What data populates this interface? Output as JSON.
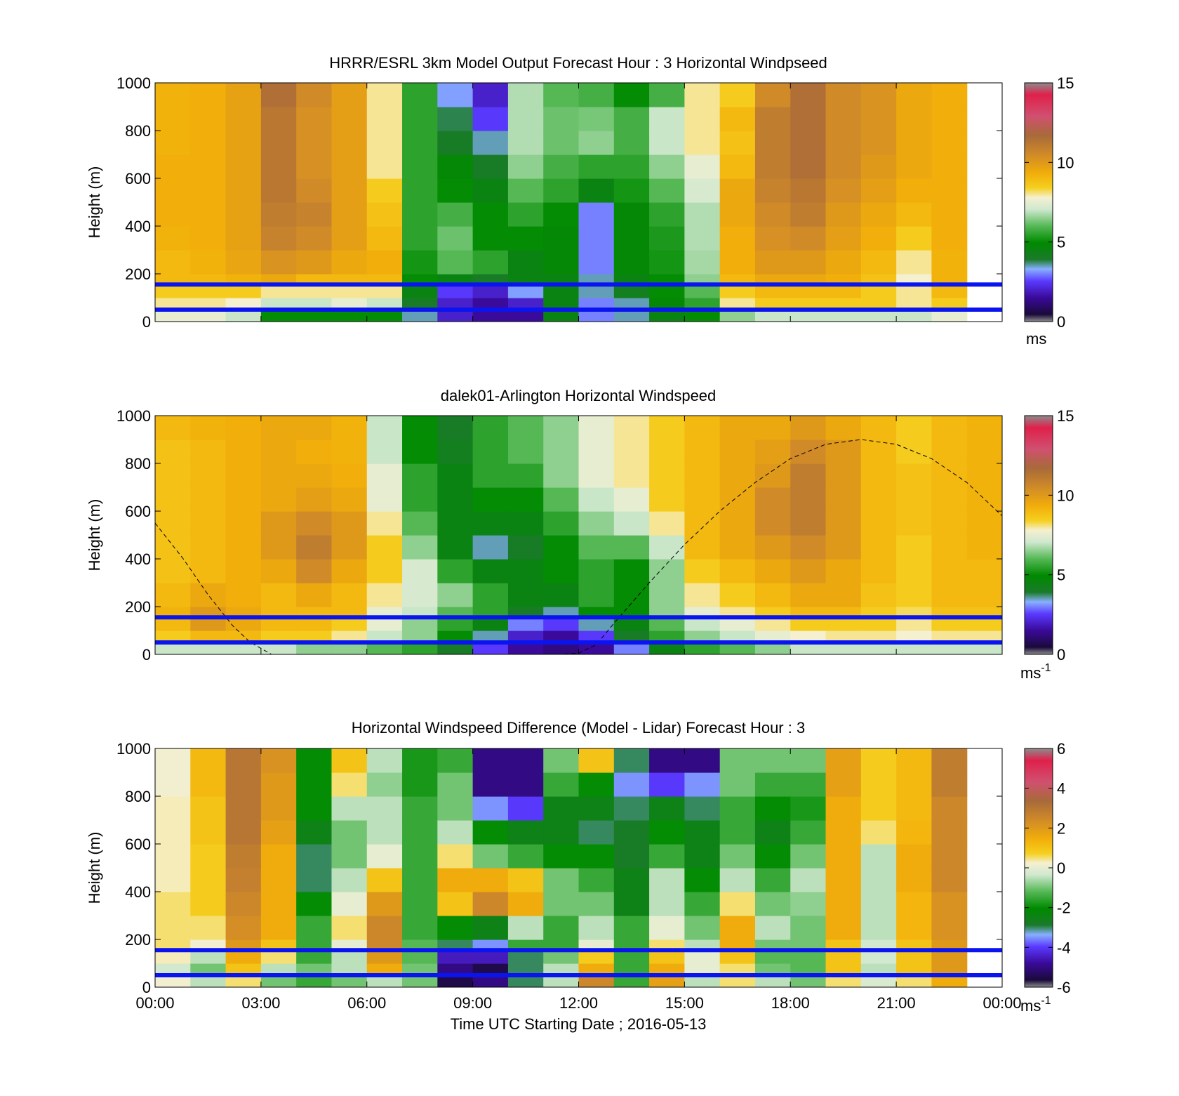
{
  "chart_data": [
    {
      "type": "heatmap",
      "title": "HRRR/ESRL 3km Model Output   Forecast Hour : 3 Horizontal Windpseed",
      "ylabel": "Height (m)",
      "ylim": [
        0,
        1000
      ],
      "yticks": [
        "0",
        "200",
        "400",
        "600",
        "800",
        "1000"
      ],
      "colorbar": {
        "min": 0,
        "max": 15,
        "ticks": [
          "0",
          "5",
          "10",
          "15"
        ],
        "unit": "ms"
      },
      "reference_heights_m": [
        50,
        155
      ],
      "hours": [
        "00",
        "01",
        "02",
        "03",
        "04",
        "05",
        "06",
        "07",
        "08",
        "09",
        "10",
        "11",
        "12",
        "13",
        "14",
        "15",
        "16",
        "17",
        "18",
        "19",
        "20",
        "21",
        "22"
      ],
      "profile_heights_m": [
        25,
        75,
        125,
        175,
        250,
        350,
        450,
        550,
        650,
        750,
        850,
        950
      ],
      "values": [
        [
          7.5,
          8.0,
          8.5,
          9.0,
          9.0,
          9.2,
          9.3,
          9.3,
          9.3,
          9.2,
          9.2,
          9.2
        ],
        [
          7.5,
          8.0,
          8.5,
          9.0,
          9.2,
          9.3,
          9.3,
          9.3,
          9.3,
          9.3,
          9.3,
          9.3
        ],
        [
          7.0,
          7.8,
          8.5,
          9.2,
          9.6,
          9.7,
          9.7,
          9.7,
          9.7,
          9.7,
          9.7,
          9.7
        ],
        [
          5.0,
          7.0,
          8.0,
          9.5,
          10.2,
          10.8,
          11.0,
          11.2,
          11.2,
          11.2,
          11.2,
          11.5
        ],
        [
          5.0,
          7.0,
          8.0,
          9.0,
          10.0,
          10.5,
          10.8,
          10.5,
          10.3,
          10.3,
          10.3,
          10.5
        ],
        [
          5.0,
          7.5,
          8.0,
          9.0,
          9.5,
          9.8,
          9.8,
          9.8,
          9.8,
          9.8,
          9.8,
          9.8
        ],
        [
          5.0,
          7.0,
          8.0,
          9.0,
          9.3,
          9.0,
          8.8,
          8.5,
          8.0,
          8.0,
          8.0,
          8.0
        ],
        [
          3.5,
          4.0,
          4.5,
          5.0,
          5.2,
          5.5,
          5.5,
          5.5,
          5.5,
          5.5,
          5.5,
          5.5
        ],
        [
          2.0,
          2.0,
          2.5,
          4.5,
          6.0,
          6.2,
          5.8,
          5.0,
          4.8,
          4.0,
          3.8,
          3.2
        ],
        [
          1.5,
          1.5,
          2.0,
          4.0,
          5.5,
          5.0,
          5.0,
          4.5,
          4.0,
          3.5,
          2.5,
          2.0
        ],
        [
          1.5,
          2.0,
          3.2,
          4.5,
          4.5,
          5.0,
          5.5,
          6.0,
          6.5,
          6.8,
          6.8,
          6.8
        ],
        [
          4.5,
          4.5,
          4.5,
          4.5,
          4.8,
          4.8,
          5.0,
          5.5,
          5.8,
          6.2,
          6.2,
          6.0
        ],
        [
          3.0,
          3.0,
          3.5,
          3.5,
          3.0,
          3.0,
          3.0,
          4.5,
          5.5,
          6.5,
          6.3,
          5.8
        ],
        [
          3.5,
          3.5,
          4.2,
          4.5,
          4.8,
          4.8,
          4.8,
          5.2,
          5.5,
          5.8,
          5.8,
          5.0
        ],
        [
          4.5,
          4.8,
          5.0,
          5.0,
          5.2,
          5.3,
          5.5,
          6.0,
          6.5,
          7.0,
          7.0,
          5.8
        ],
        [
          5.0,
          5.5,
          6.0,
          6.5,
          6.7,
          6.8,
          6.8,
          7.2,
          7.5,
          8.0,
          8.0,
          8.0
        ],
        [
          6.5,
          8.0,
          8.5,
          9.0,
          9.3,
          9.3,
          9.5,
          9.5,
          9.0,
          8.8,
          9.0,
          8.5
        ],
        [
          7.0,
          8.5,
          9.0,
          9.5,
          10.0,
          10.3,
          10.5,
          10.8,
          11.0,
          11.0,
          11.0,
          10.5
        ],
        [
          7.0,
          8.5,
          9.0,
          9.5,
          10.0,
          10.5,
          11.0,
          11.2,
          11.5,
          11.5,
          11.5,
          11.5
        ],
        [
          7.0,
          8.5,
          9.0,
          9.3,
          9.5,
          9.8,
          10.0,
          10.3,
          10.5,
          10.5,
          10.5,
          10.5
        ],
        [
          7.0,
          8.5,
          8.5,
          8.8,
          9.0,
          9.3,
          9.5,
          9.8,
          10.0,
          10.2,
          10.2,
          10.2
        ],
        [
          7.0,
          8.0,
          8.0,
          7.8,
          8.0,
          8.5,
          9.0,
          9.3,
          9.5,
          9.5,
          9.5,
          9.5
        ],
        [
          7.5,
          8.5,
          9.0,
          9.2,
          9.2,
          9.3,
          9.3,
          9.3,
          9.3,
          9.3,
          9.3,
          9.3
        ]
      ]
    },
    {
      "type": "heatmap",
      "title": "dalek01-Arlington  Horizontal Windspeed",
      "ylabel": "Height (m)",
      "ylim": [
        0,
        1000
      ],
      "yticks": [
        "0",
        "200",
        "400",
        "600",
        "800",
        "1000"
      ],
      "colorbar": {
        "min": 0,
        "max": 15,
        "ticks": [
          "0",
          "5",
          "10",
          "15"
        ],
        "unit": "ms",
        "unit_exp": "-1"
      },
      "reference_heights_m": [
        50,
        155
      ],
      "hours": [
        "00",
        "01",
        "02",
        "03",
        "04",
        "05",
        "06",
        "07",
        "08",
        "09",
        "10",
        "11",
        "12",
        "13",
        "14",
        "15",
        "16",
        "17",
        "18",
        "19",
        "20",
        "21",
        "22",
        "23"
      ],
      "profile_heights_m": [
        25,
        75,
        125,
        175,
        250,
        350,
        450,
        550,
        650,
        750,
        850,
        950
      ],
      "values": [
        [
          7.0,
          8.5,
          9.0,
          9.2,
          9.0,
          8.8,
          8.8,
          8.8,
          8.8,
          8.8,
          8.8,
          9.0
        ],
        [
          7.0,
          9.0,
          10.0,
          10.0,
          9.5,
          9.0,
          9.0,
          9.0,
          9.0,
          9.0,
          9.0,
          9.2
        ],
        [
          7.0,
          9.0,
          9.5,
          9.5,
          9.3,
          9.3,
          9.3,
          9.3,
          9.3,
          9.3,
          9.3,
          9.3
        ],
        [
          7.0,
          8.5,
          9.0,
          9.0,
          9.0,
          9.5,
          10.0,
          10.0,
          9.5,
          9.5,
          9.5,
          9.5
        ],
        [
          6.5,
          8.5,
          9.0,
          9.0,
          9.5,
          10.5,
          11.0,
          10.5,
          9.8,
          9.5,
          9.3,
          9.5
        ],
        [
          6.5,
          8.0,
          8.5,
          9.0,
          9.0,
          9.5,
          10.0,
          10.0,
          9.5,
          9.3,
          9.2,
          9.2
        ],
        [
          6.0,
          7.0,
          7.5,
          7.5,
          8.0,
          8.5,
          8.5,
          8.0,
          7.5,
          7.5,
          7.0,
          7.0
        ],
        [
          5.5,
          6.5,
          6.5,
          7.0,
          7.2,
          7.2,
          6.5,
          6.0,
          5.5,
          5.5,
          5.0,
          5.0
        ],
        [
          4.0,
          5.0,
          5.5,
          6.0,
          6.5,
          5.5,
          4.5,
          4.5,
          4.5,
          4.5,
          4.2,
          4.0
        ],
        [
          2.5,
          3.5,
          4.5,
          5.5,
          5.5,
          4.5,
          3.5,
          4.5,
          5.0,
          5.5,
          5.5,
          5.5
        ],
        [
          1.5,
          2.0,
          3.0,
          4.0,
          4.5,
          4.5,
          4.0,
          4.5,
          5.0,
          5.5,
          6.0,
          6.0
        ],
        [
          1.2,
          1.5,
          2.5,
          3.5,
          4.5,
          5.0,
          5.0,
          5.5,
          6.0,
          6.5,
          6.5,
          6.5
        ],
        [
          1.5,
          2.5,
          3.5,
          5.0,
          5.5,
          5.5,
          6.0,
          6.5,
          7.0,
          7.5,
          7.5,
          7.5
        ],
        [
          3.0,
          4.0,
          4.5,
          5.0,
          5.0,
          5.0,
          6.0,
          7.0,
          7.5,
          8.0,
          8.0,
          8.0
        ],
        [
          4.5,
          5.5,
          6.0,
          6.5,
          6.5,
          6.5,
          7.0,
          8.0,
          8.5,
          8.5,
          8.5,
          8.5
        ],
        [
          5.5,
          6.5,
          7.0,
          7.5,
          8.0,
          8.5,
          9.0,
          9.0,
          9.0,
          9.0,
          9.0,
          9.0
        ],
        [
          6.0,
          7.0,
          7.5,
          8.0,
          8.5,
          9.0,
          9.5,
          9.5,
          9.5,
          9.5,
          9.5,
          9.5
        ],
        [
          6.5,
          7.5,
          8.0,
          8.5,
          9.0,
          9.5,
          10.0,
          10.5,
          10.5,
          10.0,
          9.8,
          9.5
        ],
        [
          7.0,
          7.8,
          8.5,
          9.0,
          9.5,
          10.0,
          10.5,
          11.0,
          11.0,
          11.0,
          10.5,
          10.0
        ],
        [
          7.0,
          8.0,
          8.5,
          9.0,
          9.5,
          9.5,
          10.0,
          10.0,
          10.0,
          10.0,
          10.0,
          9.5
        ],
        [
          7.0,
          8.0,
          8.5,
          8.5,
          8.8,
          9.0,
          9.0,
          9.0,
          9.0,
          9.0,
          9.0,
          9.0
        ],
        [
          7.0,
          7.8,
          8.0,
          8.2,
          8.5,
          8.5,
          8.5,
          8.8,
          8.8,
          8.8,
          8.5,
          8.5
        ],
        [
          7.0,
          8.0,
          8.5,
          8.8,
          9.0,
          9.0,
          9.0,
          9.0,
          9.0,
          9.0,
          9.0,
          9.0
        ],
        [
          7.0,
          8.0,
          8.5,
          8.8,
          9.0,
          9.0,
          9.2,
          9.2,
          9.2,
          9.2,
          9.2,
          9.2
        ]
      ],
      "dashed_curve": {
        "x_hours": [
          0,
          0.8,
          1.5,
          2.2,
          2.7,
          3.3,
          4,
          5,
          6,
          7,
          8,
          9,
          10,
          11,
          11.5,
          12,
          12.5,
          13,
          14,
          15,
          16,
          17,
          18,
          19,
          20,
          21,
          22,
          23,
          24
        ],
        "y_m": [
          550,
          400,
          250,
          120,
          50,
          0,
          0,
          0,
          0,
          0,
          0,
          0,
          0,
          0,
          0,
          5,
          40,
          130,
          300,
          460,
          600,
          720,
          820,
          880,
          900,
          880,
          820,
          720,
          580
        ]
      }
    },
    {
      "type": "heatmap",
      "title": "Horizontal Windspeed Difference (Model - Lidar) Forecast Hour : 3",
      "ylabel": "Height (m)",
      "xlabel": "Time UTC  Starting Date ; 2016-05-13",
      "ylim": [
        0,
        1000
      ],
      "yticks": [
        "0",
        "200",
        "400",
        "600",
        "800",
        "1000"
      ],
      "xticks": [
        "00:00",
        "03:00",
        "06:00",
        "09:00",
        "12:00",
        "15:00",
        "18:00",
        "21:00",
        "00:00"
      ],
      "colorbar": {
        "min": -6,
        "max": 6,
        "ticks": [
          "-6",
          "-4",
          "-2",
          "0",
          "2",
          "4",
          "6"
        ],
        "unit": "ms",
        "unit_exp": "-1"
      },
      "reference_heights_m": [
        50,
        155
      ],
      "hours": [
        "00",
        "01",
        "02",
        "03",
        "04",
        "05",
        "06",
        "07",
        "08",
        "09",
        "10",
        "11",
        "12",
        "13",
        "14",
        "15",
        "16",
        "17",
        "18",
        "19",
        "20",
        "21",
        "22"
      ],
      "profile_heights_m": [
        25,
        75,
        125,
        175,
        250,
        350,
        450,
        550,
        650,
        750,
        850,
        950
      ],
      "values": [
        [
          0.2,
          -0.3,
          0.3,
          0.5,
          0.5,
          0.5,
          0.3,
          0.3,
          0.3,
          0.3,
          0.2,
          0.2
        ],
        [
          -0.5,
          -1.0,
          -0.5,
          0.2,
          0.5,
          0.8,
          0.8,
          0.8,
          1.0,
          1.0,
          1.2,
          1.2
        ],
        [
          0.5,
          1.0,
          1.5,
          2.0,
          2.3,
          2.5,
          2.7,
          2.8,
          3.0,
          3.0,
          3.0,
          3.0
        ],
        [
          -1.0,
          -0.5,
          0.5,
          1.0,
          1.5,
          1.5,
          1.5,
          1.5,
          1.8,
          2.0,
          2.0,
          2.2
        ],
        [
          -1.5,
          -1.0,
          -1.5,
          -1.5,
          -1.5,
          -2.0,
          -3.0,
          -3.0,
          -2.5,
          -2.0,
          -2.0,
          -2.0
        ],
        [
          -1.0,
          -0.5,
          -0.5,
          0.0,
          0.5,
          0.0,
          -0.5,
          -1.0,
          -1.0,
          -0.5,
          0.5,
          1.0
        ],
        [
          -0.5,
          1.5,
          2.0,
          2.5,
          2.5,
          2.0,
          1.0,
          0.0,
          -0.5,
          -0.5,
          -0.8,
          -0.5
        ],
        [
          -1.0,
          -1.0,
          -1.2,
          -1.2,
          -1.5,
          -1.5,
          -1.5,
          -1.5,
          -1.5,
          -1.5,
          -1.8,
          -1.8
        ],
        [
          -5.5,
          -5.0,
          -4.5,
          -3.0,
          -2.0,
          1.0,
          1.5,
          0.5,
          -0.5,
          -1.0,
          -1.0,
          -1.5
        ],
        [
          -5.0,
          -5.5,
          -4.5,
          -3.5,
          -2.5,
          2.5,
          1.5,
          -1.0,
          -2.0,
          -3.5,
          -5.0,
          -5.0
        ],
        [
          -3.0,
          -3.0,
          -3.0,
          -1.5,
          -0.5,
          1.5,
          1.0,
          -1.5,
          -2.5,
          -4.0,
          -5.0,
          -5.0
        ],
        [
          -0.5,
          -0.5,
          -1.0,
          -1.5,
          -1.5,
          -1.0,
          -1.0,
          -2.0,
          -2.5,
          -2.5,
          -1.5,
          -1.0
        ],
        [
          2.5,
          1.5,
          0.8,
          0.0,
          -0.5,
          -1.0,
          -1.5,
          -2.0,
          -3.0,
          -2.5,
          -2.0,
          1.0
        ],
        [
          -1.5,
          -1.5,
          -1.5,
          -1.5,
          -1.5,
          -2.5,
          -2.5,
          -2.8,
          -2.8,
          -3.0,
          -3.5,
          -3.0
        ],
        [
          1.8,
          1.5,
          1.0,
          0.5,
          0.0,
          -0.5,
          -0.5,
          -1.5,
          -2.0,
          -2.5,
          -4.0,
          -5.0
        ],
        [
          -0.5,
          0.0,
          0.0,
          -0.5,
          -1.0,
          -1.5,
          -2.0,
          -2.5,
          -2.5,
          -3.0,
          -3.5,
          -5.0
        ],
        [
          0.5,
          0.5,
          1.0,
          1.5,
          1.5,
          0.5,
          -0.5,
          -1.0,
          -1.5,
          -1.5,
          -1.0,
          -1.0
        ],
        [
          -0.5,
          -1.0,
          -1.2,
          -1.0,
          -0.5,
          -1.0,
          -1.5,
          -2.0,
          -2.5,
          -2.0,
          -1.5,
          -1.0
        ],
        [
          -1.0,
          -1.2,
          -1.2,
          -1.0,
          -1.0,
          -0.8,
          -0.5,
          -1.0,
          -1.5,
          -1.8,
          -1.5,
          -1.0
        ],
        [
          0.5,
          1.0,
          1.0,
          1.0,
          1.5,
          1.5,
          1.5,
          1.5,
          1.5,
          1.5,
          1.8,
          1.8
        ],
        [
          -0.2,
          -0.5,
          -0.3,
          -0.3,
          -0.5,
          -0.5,
          -0.5,
          -0.5,
          0.5,
          0.8,
          0.8,
          0.8
        ],
        [
          0.5,
          1.0,
          1.0,
          1.0,
          1.3,
          1.3,
          1.5,
          1.5,
          1.3,
          1.2,
          1.2,
          1.2
        ],
        [
          1.5,
          2.0,
          2.0,
          2.0,
          2.2,
          2.2,
          2.5,
          2.5,
          2.5,
          2.5,
          2.8,
          2.8
        ]
      ]
    }
  ],
  "colormap": [
    [
      0.0,
      "#8c8c8c"
    ],
    [
      0.03,
      "#1a0a3a"
    ],
    [
      0.1,
      "#3a0a9a"
    ],
    [
      0.17,
      "#5a3aff"
    ],
    [
      0.22,
      "#88b0ff"
    ],
    [
      0.26,
      "#1a7a2a"
    ],
    [
      0.33,
      "#008a00"
    ],
    [
      0.4,
      "#55b855"
    ],
    [
      0.47,
      "#cfe8cf"
    ],
    [
      0.52,
      "#f5f0d0"
    ],
    [
      0.56,
      "#f5d020"
    ],
    [
      0.62,
      "#f2ae0a"
    ],
    [
      0.7,
      "#d08a28"
    ],
    [
      0.78,
      "#a86a3a"
    ],
    [
      0.86,
      "#d05070"
    ],
    [
      0.95,
      "#e0204a"
    ],
    [
      1.0,
      "#8c8c8c"
    ]
  ]
}
